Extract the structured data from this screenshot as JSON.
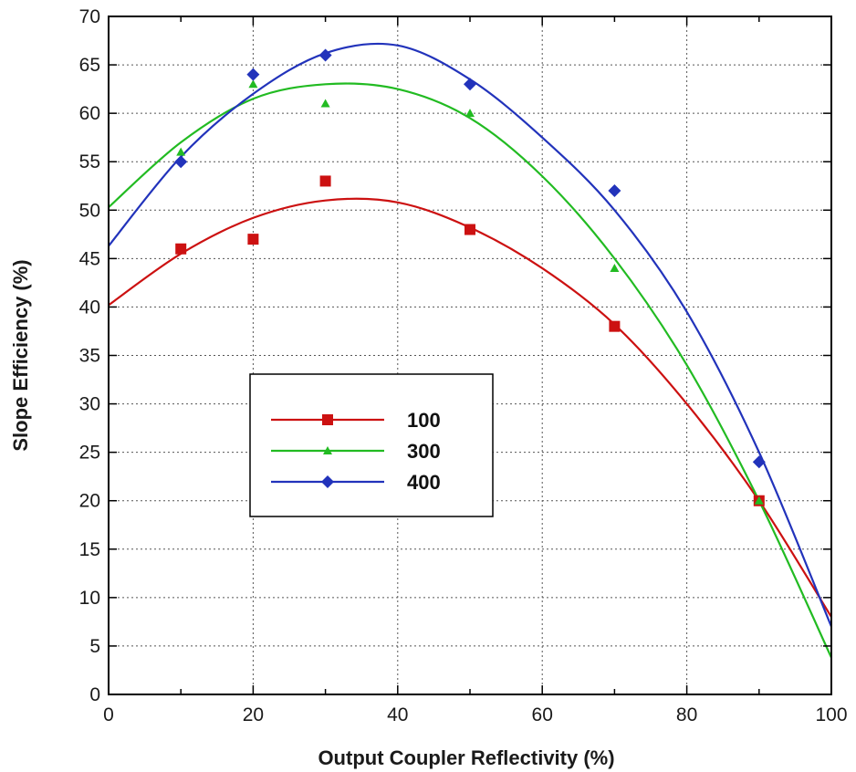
{
  "chart_data": {
    "type": "scatter",
    "xlabel": "Output Coupler Reflectivity (%)",
    "ylabel": "Slope Efficiency (%)",
    "xlim": [
      0,
      100
    ],
    "ylim": [
      0,
      70
    ],
    "xticks": [
      0,
      20,
      40,
      60,
      80,
      100
    ],
    "yticks": [
      0,
      5,
      10,
      15,
      20,
      25,
      30,
      35,
      40,
      45,
      50,
      55,
      60,
      65,
      70
    ],
    "grid": true,
    "legend_position": "center-left",
    "series": [
      {
        "name": "100",
        "color": "#cc1111",
        "marker": "square",
        "points": [
          [
            10,
            46
          ],
          [
            20,
            47
          ],
          [
            30,
            53
          ],
          [
            50,
            48
          ],
          [
            70,
            38
          ],
          [
            90,
            20
          ]
        ],
        "fit_curve": [
          [
            0,
            40.2
          ],
          [
            10,
            45.5
          ],
          [
            20,
            49.2
          ],
          [
            30,
            51.0
          ],
          [
            40,
            50.8
          ],
          [
            50,
            48.2
          ],
          [
            60,
            44.0
          ],
          [
            70,
            38.2
          ],
          [
            80,
            30.0
          ],
          [
            90,
            20.0
          ],
          [
            100,
            8.0
          ]
        ]
      },
      {
        "name": "300",
        "color": "#22bb22",
        "marker": "triangle",
        "points": [
          [
            10,
            56
          ],
          [
            20,
            63
          ],
          [
            30,
            61
          ],
          [
            50,
            60
          ],
          [
            70,
            44
          ],
          [
            90,
            20
          ]
        ],
        "fit_curve": [
          [
            0,
            50.3
          ],
          [
            10,
            57.0
          ],
          [
            20,
            61.5
          ],
          [
            30,
            63.0
          ],
          [
            40,
            62.5
          ],
          [
            50,
            59.5
          ],
          [
            60,
            53.5
          ],
          [
            70,
            45.0
          ],
          [
            80,
            34.0
          ],
          [
            90,
            20.0
          ],
          [
            100,
            3.8
          ]
        ]
      },
      {
        "name": "400",
        "color": "#2233bb",
        "marker": "diamond",
        "points": [
          [
            10,
            55
          ],
          [
            20,
            64
          ],
          [
            30,
            66
          ],
          [
            50,
            63
          ],
          [
            70,
            52
          ],
          [
            90,
            24
          ]
        ],
        "fit_curve": [
          [
            0,
            46.3
          ],
          [
            10,
            55.5
          ],
          [
            20,
            62.0
          ],
          [
            30,
            66.2
          ],
          [
            40,
            67.0
          ],
          [
            50,
            63.5
          ],
          [
            60,
            57.5
          ],
          [
            70,
            50.0
          ],
          [
            80,
            39.5
          ],
          [
            90,
            25.0
          ],
          [
            100,
            7.0
          ]
        ]
      }
    ]
  }
}
